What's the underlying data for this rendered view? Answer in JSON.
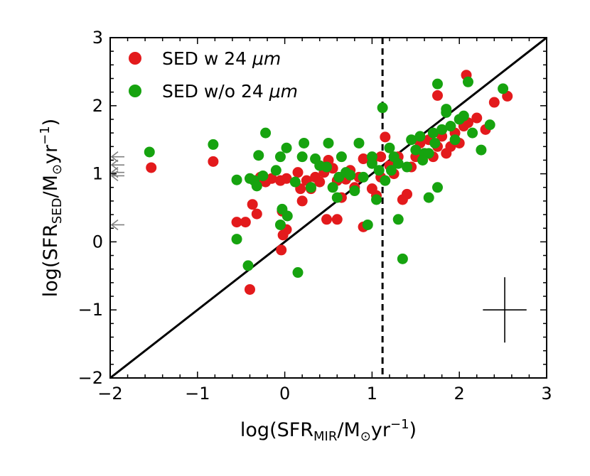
{
  "chart_data": {
    "type": "scatter",
    "xlabel": "log(SFR_MIR/M_⊙yr^−1)",
    "xlabel_parts": {
      "pre": "log(SFR",
      "sub": "MIR",
      "mid": "/M",
      "sun": "⊙",
      "yr": "yr",
      "exp": "−1",
      "post": ")"
    },
    "ylabel": "log(SFR_SED/M_⊙yr^−1)",
    "ylabel_parts": {
      "pre": "log(SFR",
      "sub": "SED",
      "mid": "/M",
      "sun": "⊙",
      "yr": "yr",
      "exp": "−1",
      "post": ")"
    },
    "xlim": [
      -2,
      3
    ],
    "ylim": [
      -2,
      3
    ],
    "xticks": [
      -2,
      -1,
      0,
      1,
      2,
      3
    ],
    "yticks": [
      -2,
      -1,
      0,
      1,
      2,
      3
    ],
    "xtick_labels": [
      "−2",
      "−1",
      "0",
      "1",
      "2",
      "3"
    ],
    "ytick_labels": [
      "−2",
      "−1",
      "0",
      "1",
      "2",
      "3"
    ],
    "legend_position": "top-left",
    "reference_lines": {
      "one_to_one": {
        "from": [
          -2,
          -2
        ],
        "to": [
          3,
          3
        ],
        "color": "#000000"
      },
      "vertical_dashed_x": 1.12
    },
    "upper_limit_arrows_y": [
      1.25,
      1.13,
      1.02,
      0.97,
      0.25
    ],
    "upper_limit_arrow_x": -2,
    "error_bar": {
      "x": 2.52,
      "y": -1.0,
      "xerr": 0.25,
      "yerr": 0.48
    },
    "series": [
      {
        "name": "SED w 24 μm",
        "label_text": "SED w 24 ",
        "label_unit": "μm",
        "color": "#e31a1c",
        "points": [
          [
            -1.53,
            1.09
          ],
          [
            -0.82,
            1.18
          ],
          [
            -0.55,
            0.29
          ],
          [
            -0.45,
            0.29
          ],
          [
            -0.37,
            0.55
          ],
          [
            -0.32,
            0.41
          ],
          [
            -0.28,
            0.95
          ],
          [
            -0.22,
            0.88
          ],
          [
            -0.15,
            0.93
          ],
          [
            -0.05,
            0.9
          ],
          [
            -0.04,
            -0.12
          ],
          [
            -0.03,
            0.45
          ],
          [
            -0.02,
            0.1
          ],
          [
            0.02,
            0.18
          ],
          [
            0.02,
            0.93
          ],
          [
            0.15,
            1.02
          ],
          [
            0.18,
            0.78
          ],
          [
            0.2,
            0.6
          ],
          [
            0.25,
            0.9
          ],
          [
            0.3,
            0.78
          ],
          [
            0.35,
            0.95
          ],
          [
            0.4,
            0.88
          ],
          [
            0.45,
            1.02
          ],
          [
            0.48,
            0.33
          ],
          [
            0.5,
            1.2
          ],
          [
            0.55,
            1.08
          ],
          [
            0.6,
            0.33
          ],
          [
            0.6,
            0.9
          ],
          [
            0.65,
            0.65
          ],
          [
            0.7,
            0.92
          ],
          [
            0.75,
            1.05
          ],
          [
            0.8,
            0.8
          ],
          [
            0.85,
            0.95
          ],
          [
            0.9,
            0.22
          ],
          [
            0.9,
            1.22
          ],
          [
            1.0,
            0.78
          ],
          [
            1.0,
            1.18
          ],
          [
            1.05,
            0.68
          ],
          [
            1.1,
            1.25
          ],
          [
            1.1,
            0.95
          ],
          [
            1.15,
            1.54
          ],
          [
            1.2,
            1.12
          ],
          [
            1.25,
            1.0
          ],
          [
            1.3,
            1.25
          ],
          [
            1.35,
            0.62
          ],
          [
            1.4,
            0.7
          ],
          [
            1.45,
            1.1
          ],
          [
            1.5,
            1.25
          ],
          [
            1.55,
            1.45
          ],
          [
            1.6,
            1.3
          ],
          [
            1.65,
            1.5
          ],
          [
            1.7,
            1.25
          ],
          [
            1.75,
            1.4
          ],
          [
            1.75,
            2.15
          ],
          [
            1.8,
            1.55
          ],
          [
            1.85,
            1.3
          ],
          [
            1.9,
            1.4
          ],
          [
            1.95,
            1.6
          ],
          [
            2.0,
            1.45
          ],
          [
            2.05,
            1.7
          ],
          [
            2.08,
            2.45
          ],
          [
            2.1,
            1.75
          ],
          [
            2.2,
            1.82
          ],
          [
            2.3,
            1.65
          ],
          [
            2.4,
            2.05
          ],
          [
            2.55,
            2.14
          ],
          [
            -0.4,
            -0.7
          ]
        ]
      },
      {
        "name": "SED w/o 24 μm",
        "label_text": "SED w/o 24 ",
        "label_unit": "μm",
        "color": "#16a30f",
        "points": [
          [
            -1.55,
            1.32
          ],
          [
            -0.82,
            1.43
          ],
          [
            -0.55,
            0.91
          ],
          [
            -0.55,
            0.04
          ],
          [
            -0.42,
            -0.35
          ],
          [
            -0.4,
            0.93
          ],
          [
            -0.35,
            0.9
          ],
          [
            -0.32,
            0.82
          ],
          [
            -0.3,
            1.27
          ],
          [
            -0.25,
            0.97
          ],
          [
            -0.22,
            1.6
          ],
          [
            -0.1,
            1.05
          ],
          [
            -0.05,
            1.25
          ],
          [
            -0.05,
            0.25
          ],
          [
            -0.03,
            0.48
          ],
          [
            0.02,
            1.38
          ],
          [
            0.03,
            0.38
          ],
          [
            0.12,
            0.88
          ],
          [
            0.15,
            -0.45
          ],
          [
            0.2,
            1.25
          ],
          [
            0.22,
            1.45
          ],
          [
            0.3,
            0.8
          ],
          [
            0.35,
            1.22
          ],
          [
            0.4,
            1.12
          ],
          [
            0.48,
            1.1
          ],
          [
            0.5,
            1.45
          ],
          [
            0.55,
            0.8
          ],
          [
            0.6,
            0.65
          ],
          [
            0.62,
            0.95
          ],
          [
            0.65,
            1.25
          ],
          [
            0.7,
            1.02
          ],
          [
            0.75,
            0.98
          ],
          [
            0.8,
            0.75
          ],
          [
            0.85,
            1.45
          ],
          [
            0.9,
            0.95
          ],
          [
            0.95,
            0.25
          ],
          [
            1.0,
            1.25
          ],
          [
            1.0,
            1.15
          ],
          [
            1.05,
            0.62
          ],
          [
            1.08,
            1.05
          ],
          [
            1.12,
            1.97
          ],
          [
            1.15,
            0.9
          ],
          [
            1.2,
            1.38
          ],
          [
            1.22,
            1.05
          ],
          [
            1.25,
            1.25
          ],
          [
            1.3,
            1.15
          ],
          [
            1.3,
            0.33
          ],
          [
            1.35,
            -0.25
          ],
          [
            1.4,
            1.1
          ],
          [
            1.45,
            1.5
          ],
          [
            1.5,
            1.35
          ],
          [
            1.55,
            1.55
          ],
          [
            1.6,
            1.3
          ],
          [
            1.65,
            1.3
          ],
          [
            1.7,
            1.6
          ],
          [
            1.72,
            1.45
          ],
          [
            1.75,
            2.32
          ],
          [
            1.8,
            1.65
          ],
          [
            1.85,
            1.9
          ],
          [
            1.9,
            1.7
          ],
          [
            1.95,
            1.5
          ],
          [
            2.0,
            1.8
          ],
          [
            2.05,
            1.85
          ],
          [
            2.1,
            2.35
          ],
          [
            2.15,
            1.6
          ],
          [
            2.25,
            1.35
          ],
          [
            2.35,
            1.72
          ],
          [
            2.5,
            2.25
          ],
          [
            1.65,
            0.65
          ],
          [
            1.75,
            0.8
          ],
          [
            1.85,
            1.95
          ],
          [
            1.58,
            1.2
          ]
        ]
      }
    ]
  }
}
